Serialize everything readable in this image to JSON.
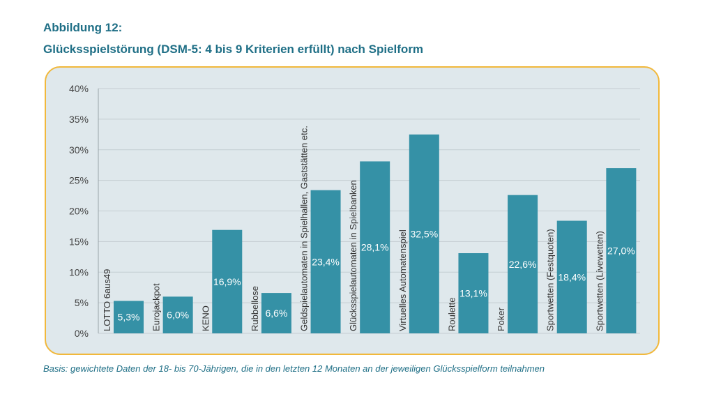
{
  "figure": {
    "label": "Abbildung 12:",
    "title": "Glücksspielstörung (DSM-5: 4 bis 9 Kriterien erfüllt) nach Spielform",
    "footnote": "Basis: gewichtete Daten der 18- bis 70-Jährigen, die in den letzten 12 Monaten an der jeweiligen Glücksspielform teilnahmen"
  },
  "colors": {
    "bar": "#3591a6",
    "panel_background": "#dfe8ec",
    "panel_border": "#f1b83b",
    "title": "#1f6f86",
    "grid": "#c4cdd2"
  },
  "chart_data": {
    "type": "bar",
    "title": "Glücksspielstörung (DSM-5: 4 bis 9 Kriterien erfüllt) nach Spielform",
    "xlabel": "",
    "ylabel": "",
    "ylim": [
      0,
      40
    ],
    "y_ticks": [
      "0%",
      "5%",
      "10%",
      "15%",
      "20%",
      "25%",
      "30%",
      "35%",
      "40%"
    ],
    "grid": true,
    "categories": [
      "LOTTO 6aus49",
      "Eurojackpot",
      "KENO",
      "Rubbellose",
      "Geldspielautomaten in Spielhallen, Gaststätten etc.",
      "Glücksspielautomaten in Spielbanken",
      "Virtuelles Automatenspiel",
      "Roulette",
      "Poker",
      "Sportwetten (Festquoten)",
      "Sportwetten (Livewetten)"
    ],
    "values": [
      5.3,
      6.0,
      16.9,
      6.6,
      23.4,
      28.1,
      32.5,
      13.1,
      22.6,
      18.4,
      27.0
    ],
    "value_labels": [
      "5,3%",
      "6,0%",
      "16,9%",
      "6,6%",
      "23,4%",
      "28,1%",
      "32,5%",
      "13,1%",
      "22,6%",
      "18,4%",
      "27,0%"
    ]
  }
}
